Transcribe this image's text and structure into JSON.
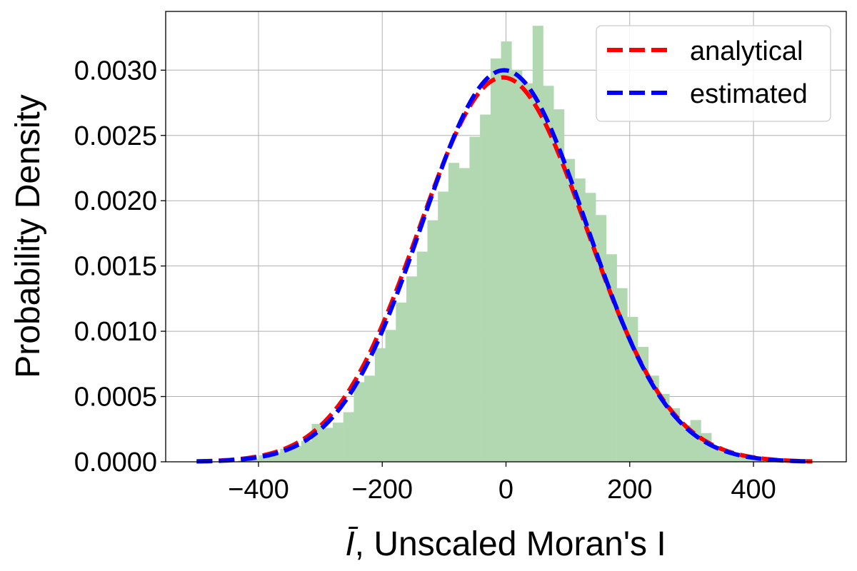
{
  "chart_data": {
    "type": "bar",
    "xlabel_symbol": "Ī",
    "xlabel_rest": ", Unscaled Moran's I",
    "ylabel": "Probability Density",
    "xlim": [
      -550,
      550
    ],
    "ylim": [
      0,
      0.00345
    ],
    "xticks": [
      -400,
      -200,
      0,
      200,
      400
    ],
    "xtick_labels": [
      "−400",
      "−200",
      "0",
      "200",
      "400"
    ],
    "yticks": [
      0,
      0.0005,
      0.001,
      0.0015,
      0.002,
      0.0025,
      0.003
    ],
    "ytick_labels": [
      "0.0000",
      "0.0005",
      "0.0010",
      "0.0015",
      "0.0020",
      "0.0025",
      "0.0030"
    ],
    "grid": true,
    "legend_placement": "top-right",
    "histogram": {
      "bin_edges": [
        -450,
        -433,
        -416,
        -399,
        -382,
        -365,
        -348,
        -331,
        -314,
        -297,
        -280,
        -263,
        -246,
        -229,
        -212,
        -195,
        -178,
        -161,
        -144,
        -127,
        -110,
        -93,
        -76,
        -59,
        -42,
        -25,
        -8,
        9,
        26,
        43,
        60,
        77,
        94,
        111,
        128,
        145,
        162,
        179,
        196,
        213,
        230,
        247,
        264,
        281,
        298,
        315,
        332,
        349,
        366,
        383,
        400,
        417,
        434
      ],
      "density": [
        0.0,
        1e-05,
        2e-05,
        5e-05,
        7e-05,
        0.0001,
        0.00012,
        0.00016,
        0.00029,
        0.00026,
        0.0003,
        0.00038,
        0.00061,
        0.00066,
        0.00087,
        0.00101,
        0.00122,
        0.00142,
        0.00161,
        0.00185,
        0.00207,
        0.00229,
        0.00225,
        0.00249,
        0.00266,
        0.00309,
        0.00322,
        0.003,
        0.0029,
        0.00334,
        0.00288,
        0.0027,
        0.00232,
        0.00217,
        0.00206,
        0.00189,
        0.00159,
        0.00133,
        0.00111,
        0.00088,
        0.00066,
        0.00052,
        0.00041,
        0.00028,
        0.00032,
        0.00022,
        0.00012,
        7e-05,
        5e-05,
        3e-05,
        1e-05,
        0.0
      ],
      "color": "#b2d8b2"
    },
    "series": [
      {
        "name": "analytical",
        "style": "dashed",
        "color": "#ff0000",
        "mu": -5,
        "sigma": 135.5,
        "x_range": [
          -500,
          495
        ]
      },
      {
        "name": "estimated",
        "style": "dashed",
        "color": "#0000ff",
        "mu": -3,
        "sigma": 133,
        "x_range": [
          -500,
          495
        ]
      }
    ]
  }
}
